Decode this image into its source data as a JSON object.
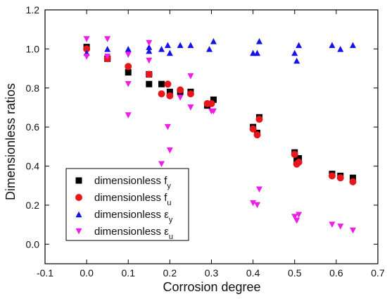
{
  "chart_data": {
    "type": "scatter",
    "title": "",
    "xlabel": "Corrosion degree",
    "ylabel": "Dimensionless ratios",
    "xlim": [
      -0.1,
      0.7
    ],
    "ylim": [
      -0.1,
      1.2
    ],
    "xticks": [
      -0.1,
      0.0,
      0.1,
      0.2,
      0.3,
      0.4,
      0.5,
      0.6,
      0.7
    ],
    "yticks": [
      0.0,
      0.2,
      0.4,
      0.6,
      0.8,
      1.0,
      1.2
    ],
    "xtick_labels": [
      "-0.1",
      "0.0",
      "0.1",
      "0.2",
      "0.3",
      "0.4",
      "0.5",
      "0.6",
      "0.7"
    ],
    "ytick_labels": [
      "0.0",
      "0.2",
      "0.4",
      "0.6",
      "0.8",
      "1.0",
      "1.2"
    ],
    "grid": false,
    "legend_position": "bottom-left",
    "series": [
      {
        "name": "dimensionless fy",
        "legend_main": "dimensionless f",
        "legend_sub": "y",
        "legend_sub_is_greek": false,
        "marker": "square",
        "color": "#000000",
        "points": [
          [
            0.0,
            1.01
          ],
          [
            0.05,
            0.95
          ],
          [
            0.1,
            0.88
          ],
          [
            0.15,
            0.87
          ],
          [
            0.15,
            0.82
          ],
          [
            0.18,
            0.82
          ],
          [
            0.2,
            0.78
          ],
          [
            0.225,
            0.78
          ],
          [
            0.25,
            0.78
          ],
          [
            0.29,
            0.71
          ],
          [
            0.305,
            0.74
          ],
          [
            0.4,
            0.6
          ],
          [
            0.41,
            0.57
          ],
          [
            0.415,
            0.65
          ],
          [
            0.5,
            0.47
          ],
          [
            0.505,
            0.43
          ],
          [
            0.51,
            0.44
          ],
          [
            0.59,
            0.36
          ],
          [
            0.61,
            0.35
          ],
          [
            0.64,
            0.34
          ]
        ]
      },
      {
        "name": "dimensionless fu",
        "legend_main": "dimensionless f",
        "legend_sub": "u",
        "legend_sub_is_greek": false,
        "marker": "circle",
        "color": "#e8161b",
        "points": [
          [
            0.0,
            1.0
          ],
          [
            0.05,
            0.95
          ],
          [
            0.1,
            0.91
          ],
          [
            0.15,
            0.87
          ],
          [
            0.18,
            0.77
          ],
          [
            0.195,
            0.82
          ],
          [
            0.2,
            0.76
          ],
          [
            0.225,
            0.79
          ],
          [
            0.25,
            0.77
          ],
          [
            0.29,
            0.72
          ],
          [
            0.3,
            0.72
          ],
          [
            0.4,
            0.59
          ],
          [
            0.41,
            0.56
          ],
          [
            0.415,
            0.64
          ],
          [
            0.5,
            0.46
          ],
          [
            0.505,
            0.41
          ],
          [
            0.51,
            0.42
          ],
          [
            0.59,
            0.35
          ],
          [
            0.61,
            0.34
          ],
          [
            0.64,
            0.32
          ]
        ]
      },
      {
        "name": "dimensionless εy",
        "legend_main": "dimensionless ",
        "legend_sub": "y",
        "legend_sub_is_greek": true,
        "marker": "triangle-up",
        "color": "#1414e6",
        "points": [
          [
            0.0,
            0.98
          ],
          [
            0.05,
            1.0
          ],
          [
            0.1,
            1.0
          ],
          [
            0.15,
            0.99
          ],
          [
            0.15,
            1.01
          ],
          [
            0.18,
            1.0
          ],
          [
            0.195,
            1.02
          ],
          [
            0.2,
            0.98
          ],
          [
            0.225,
            1.02
          ],
          [
            0.25,
            1.02
          ],
          [
            0.295,
            1.0
          ],
          [
            0.305,
            1.04
          ],
          [
            0.4,
            0.98
          ],
          [
            0.41,
            0.98
          ],
          [
            0.415,
            1.04
          ],
          [
            0.5,
            0.98
          ],
          [
            0.505,
            0.94
          ],
          [
            0.51,
            1.02
          ],
          [
            0.59,
            1.02
          ],
          [
            0.61,
            1.0
          ],
          [
            0.64,
            1.02
          ]
        ]
      },
      {
        "name": "dimensionless εu",
        "legend_main": "dimensionless ",
        "legend_sub": "u",
        "legend_sub_is_greek": true,
        "marker": "triangle-down",
        "color": "#ee1ee6",
        "points": [
          [
            0.0,
            1.05
          ],
          [
            0.0,
            0.96
          ],
          [
            0.05,
            1.05
          ],
          [
            0.05,
            0.96
          ],
          [
            0.1,
            0.97
          ],
          [
            0.1,
            0.82
          ],
          [
            0.1,
            0.66
          ],
          [
            0.15,
            1.03
          ],
          [
            0.15,
            0.94
          ],
          [
            0.18,
            0.41
          ],
          [
            0.195,
            0.6
          ],
          [
            0.2,
            0.48
          ],
          [
            0.225,
            0.75
          ],
          [
            0.25,
            0.86
          ],
          [
            0.25,
            0.7
          ],
          [
            0.3,
            0.68
          ],
          [
            0.305,
            0.68
          ],
          [
            0.4,
            0.21
          ],
          [
            0.41,
            0.2
          ],
          [
            0.415,
            0.28
          ],
          [
            0.5,
            0.14
          ],
          [
            0.505,
            0.12
          ],
          [
            0.51,
            0.15
          ],
          [
            0.59,
            0.1
          ],
          [
            0.61,
            0.09
          ],
          [
            0.64,
            0.07
          ]
        ]
      }
    ]
  }
}
